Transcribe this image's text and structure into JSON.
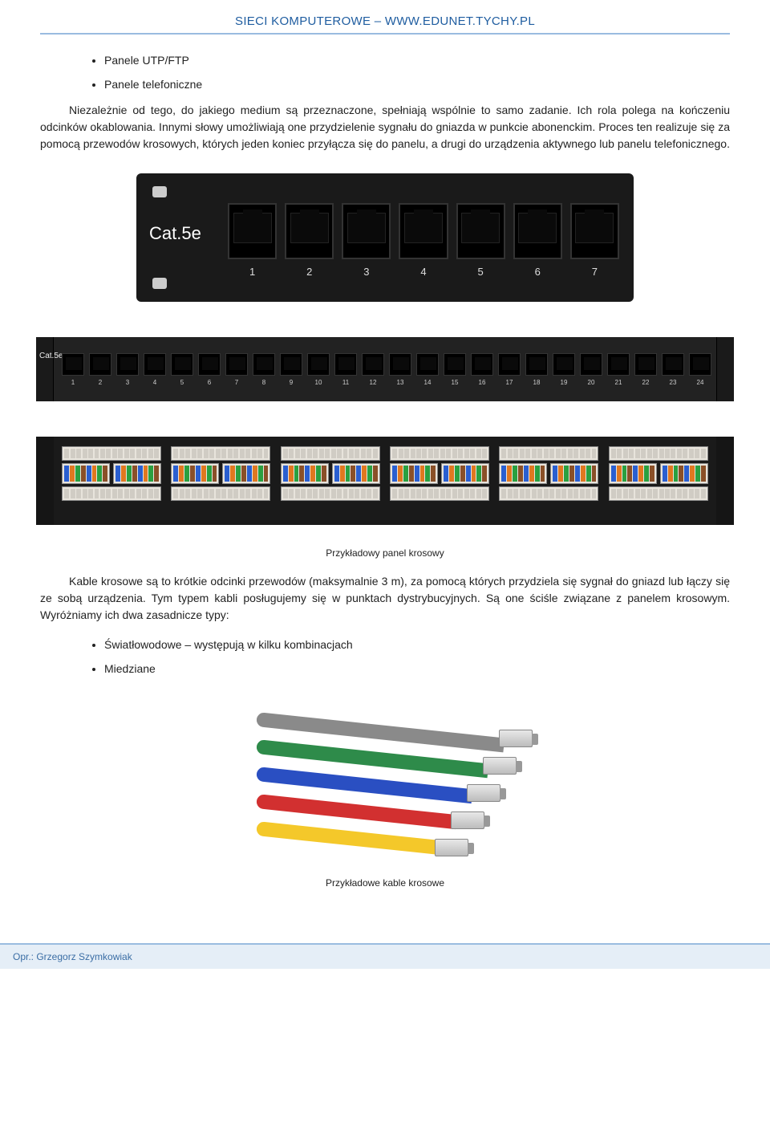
{
  "header": "SIECI KOMPUTEROWE – WWW.EDUNET.TYCHY.PL",
  "bullets_top": [
    "Panele UTP/FTP",
    "Panele telefoniczne"
  ],
  "para1": "Niezależnie od tego, do jakiego medium są przeznaczone, spełniają wspólnie to samo zadanie. Ich rola polega na kończeniu odcinków okablowania. Innymi słowy umożliwiają one przydzielenie sygnału do gniazda w punkcie abonenckim. Proces ten realizuje się za pomocą przewodów krosowych, których jeden koniec przyłącza się do panelu, a drugi do urządzenia aktywnego lub panelu telefonicznego.",
  "panel_top": {
    "label": "Cat.5e",
    "port_numbers": [
      "1",
      "2",
      "3",
      "4",
      "5",
      "6",
      "7"
    ]
  },
  "panel_long": {
    "label": "Cat.5e",
    "port_numbers": [
      "1",
      "2",
      "3",
      "4",
      "5",
      "6",
      "7",
      "8",
      "9",
      "10",
      "11",
      "12",
      "13",
      "14",
      "15",
      "16",
      "17",
      "18",
      "19",
      "20",
      "21",
      "22",
      "23",
      "24"
    ]
  },
  "panel_back": {
    "wire_colors": [
      "#2a5fd0",
      "#e07820",
      "#2aa040",
      "#8a5028",
      "#2a5fd0",
      "#e07820",
      "#2aa040",
      "#8a5028"
    ]
  },
  "caption1": "Przykładowy panel krosowy",
  "para2": "Kable krosowe są to krótkie odcinki przewodów (maksymalnie 3 m), za pomocą których przydziela się sygnał do gniazd lub łączy się ze sobą urządzenia. Tym typem kabli posługujemy się w punktach dystrybucyjnych. Są one ściśle związane z panelem krosowym. Wyróżniamy ich dwa zasadnicze typy:",
  "bullets_sub": [
    "Światłowodowe – występują w kilku kombinacjach",
    "Miedziane"
  ],
  "cable_colors": {
    "gray": "#8a8a8a",
    "green": "#2e8b4a",
    "blue": "#2a4fc2",
    "red": "#d23030",
    "yellow": "#f4c82a"
  },
  "caption2": "Przykładowe kable krosowe",
  "footer": "Opr.: Grzegorz Szymkowiak"
}
